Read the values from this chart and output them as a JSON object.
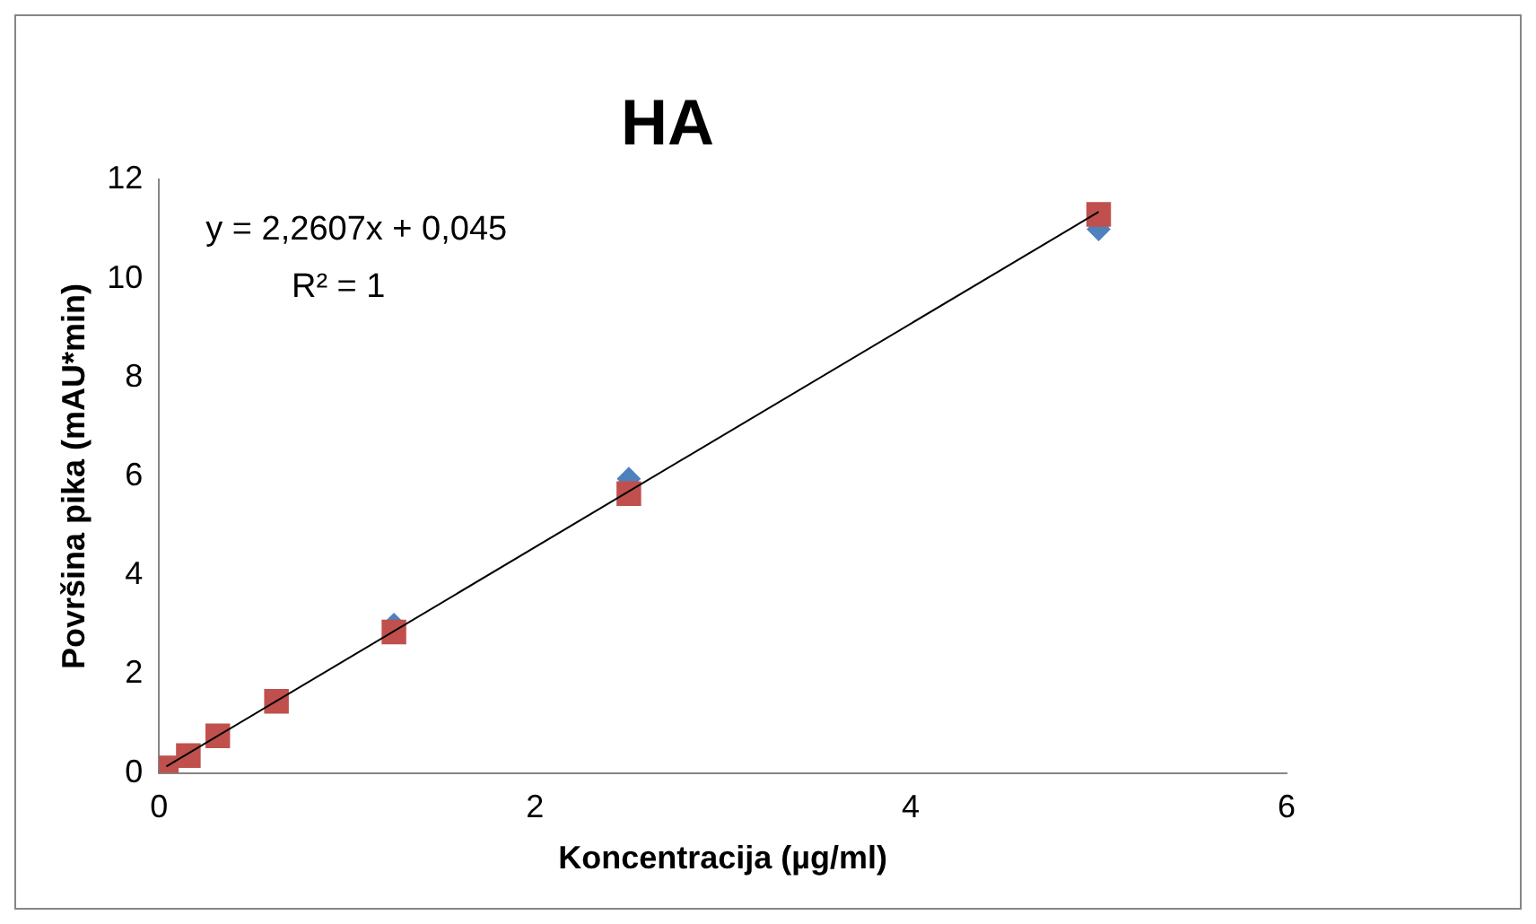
{
  "chart_data": {
    "type": "scatter",
    "title": "HA",
    "xlabel": "Koncentracija (µg/ml)",
    "ylabel": "Površina pika (mAU*min)",
    "annotations": [
      "y = 2,2607x + 0,045",
      "R² = 1"
    ],
    "xlim": [
      0,
      6
    ],
    "xticks": [
      0,
      2,
      4,
      6
    ],
    "ylim": [
      0,
      12
    ],
    "yticks": [
      0,
      2,
      4,
      6,
      8,
      10,
      12
    ],
    "grid": false,
    "legend": false,
    "series": [
      {
        "type": "scatter",
        "color": "#4f81bd",
        "marker": "diamond",
        "x": [
          1.25,
          2.5,
          5
        ],
        "values": [
          3.0,
          5.95,
          11.0
        ]
      },
      {
        "type": "scatter",
        "color": "#c0504d",
        "marker": "square",
        "x": [
          0.039,
          0.156,
          0.3125,
          0.625,
          1.25,
          2.5,
          5
        ],
        "values": [
          0.1,
          0.35,
          0.75,
          1.45,
          2.85,
          5.65,
          11.3
        ]
      },
      {
        "type": "line",
        "color": "#000000",
        "marker": "none",
        "line_style": "solid",
        "x": [
          0.039,
          5
        ],
        "values": [
          0.13,
          11.35
        ]
      }
    ]
  }
}
